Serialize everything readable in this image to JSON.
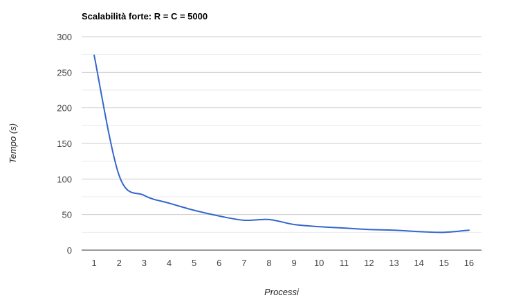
{
  "chart_data": {
    "type": "line",
    "title": "Scalabilità forte: R = C = 5000",
    "xlabel": "Processi",
    "ylabel": "Tempo (s)",
    "x": [
      1,
      2,
      3,
      4,
      5,
      6,
      7,
      8,
      9,
      10,
      11,
      12,
      13,
      14,
      15,
      16
    ],
    "series": [
      {
        "values": [
          274,
          105,
          77,
          66,
          56,
          48,
          42,
          43,
          36,
          33,
          31,
          29,
          28,
          26,
          25,
          28
        ]
      }
    ],
    "ylim": [
      0,
      300
    ],
    "yticks": [
      0,
      50,
      100,
      150,
      200,
      250,
      300
    ],
    "minor_grid_step": 25,
    "grid": true,
    "legend": "none",
    "colors": {
      "line": "#3366cc",
      "grid_major": "#cccccc",
      "grid_minor": "#ebebeb",
      "axis": "#333333"
    }
  }
}
